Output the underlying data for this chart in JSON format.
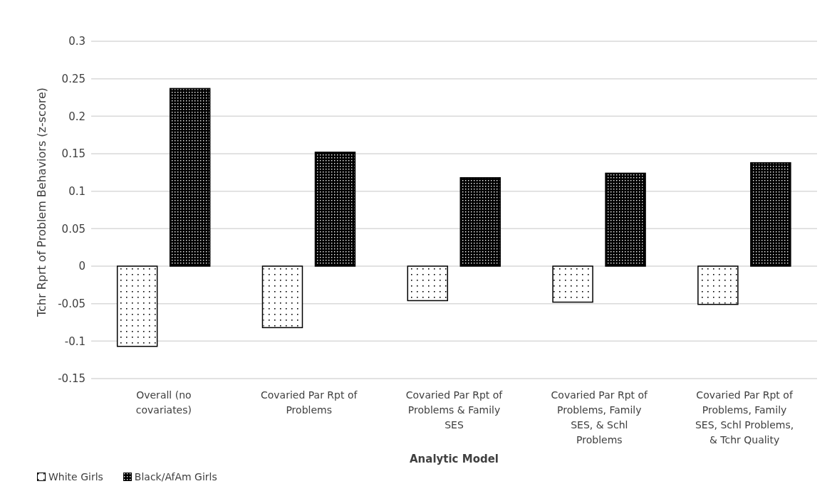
{
  "chart_data": {
    "type": "bar",
    "categories": [
      "Overall (no covariates)",
      "Covaried Par Rpt of Problems",
      "Covaried Par Rpt of Problems & Family SES",
      "Covaried Par Rpt of Problems, Family SES, & Schl Problems",
      "Covaried Par Rpt of Problems, Family SES, Schl Problems, & Tchr Quality"
    ],
    "series": [
      {
        "name": "White Girls",
        "color": "#ffffff",
        "values": [
          -0.107,
          -0.082,
          -0.046,
          -0.048,
          -0.051
        ]
      },
      {
        "name": "Black/AfAm Girls",
        "color": "#000000",
        "values": [
          0.237,
          0.152,
          0.118,
          0.124,
          0.138
        ]
      }
    ],
    "xlabel": "Analytic Model",
    "ylabel": "Tchr Rprt of Problem Behaviors (z-score)",
    "ylim": [
      -0.15,
      0.3
    ],
    "yticks": [
      -0.15,
      -0.1,
      -0.05,
      0,
      0.05,
      0.1,
      0.15,
      0.2,
      0.25,
      0.3
    ],
    "grid": "y",
    "legend": "bottom left"
  }
}
